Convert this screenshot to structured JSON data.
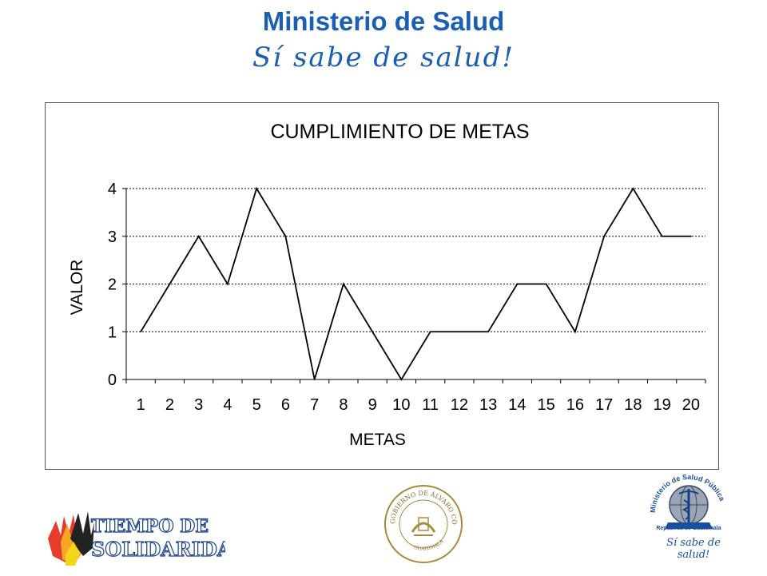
{
  "header": {
    "title": "Ministerio de Salud",
    "slogan": "Sí sabe de salud!"
  },
  "chart_data": {
    "type": "line",
    "title": "CUMPLIMIENTO DE METAS",
    "xlabel": "METAS",
    "ylabel": "VALOR",
    "categories": [
      "1",
      "2",
      "3",
      "4",
      "5",
      "6",
      "7",
      "8",
      "9",
      "10",
      "11",
      "12",
      "13",
      "14",
      "15",
      "16",
      "17",
      "18",
      "19",
      "20"
    ],
    "series": [
      {
        "values": [
          1,
          2,
          3,
          2,
          4,
          3,
          0,
          2,
          1,
          0,
          1,
          1,
          1,
          2,
          2,
          1,
          3,
          4,
          3,
          3
        ]
      }
    ],
    "ylim": [
      0,
      4
    ],
    "yticks": [
      0,
      1,
      2,
      3,
      4
    ],
    "grid": "horizontal dotted",
    "line_color": "#000000"
  },
  "logos": {
    "left_text_top": "TIEMPO DE",
    "left_text_bottom": "SOLIDARIDAD",
    "center_text": "GOBIERNO DE ÁLVARO COLOM",
    "center_sub": "GUATEMALA",
    "right_ring": "Ministerio de Salud Pública",
    "right_sub": "República de Guatemala",
    "right_slogan": "Sí sabe de salud!"
  }
}
